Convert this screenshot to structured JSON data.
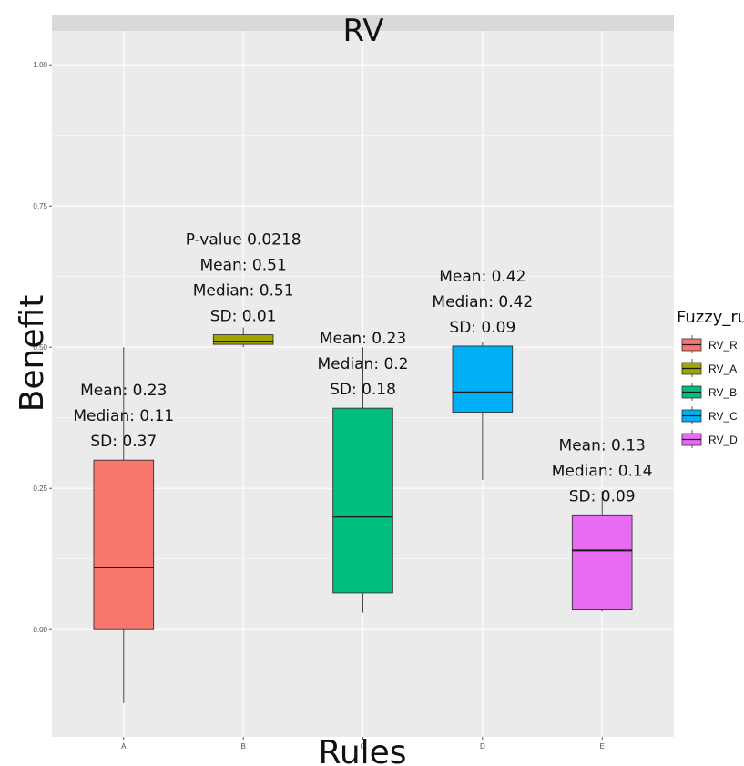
{
  "chart_data": {
    "type": "box",
    "title": "RV",
    "xlabel": "Rules",
    "ylabel": "Benefit",
    "ylim": [
      -0.19,
      1.06
    ],
    "y_ticks": [
      "0.00",
      "0.25",
      "0.50",
      "0.75",
      "1.00"
    ],
    "grid": true,
    "legend": {
      "title": "Fuzzy_rule",
      "placement": "right",
      "entries": [
        "RV_R",
        "RV_A",
        "RV_B",
        "RV_C",
        "RV_D"
      ]
    },
    "categories": [
      "A",
      "B",
      "C",
      "D",
      "E"
    ],
    "boxes": [
      {
        "category": "A",
        "series": "RV_R",
        "color": "#F8766D",
        "whisker_low": -0.13,
        "q1": 0.0,
        "median": 0.11,
        "q3": 0.3,
        "whisker_high": 0.5
      },
      {
        "category": "B",
        "series": "RV_A",
        "color": "#A3A500",
        "whisker_low": 0.5,
        "q1": 0.505,
        "median": 0.51,
        "q3": 0.522,
        "whisker_high": 0.535
      },
      {
        "category": "C",
        "series": "RV_B",
        "color": "#00BF7D",
        "whisker_low": 0.03,
        "q1": 0.065,
        "median": 0.2,
        "q3": 0.392,
        "whisker_high": 0.5
      },
      {
        "category": "D",
        "series": "RV_C",
        "color": "#00B0F6",
        "whisker_low": 0.265,
        "q1": 0.385,
        "median": 0.42,
        "q3": 0.502,
        "whisker_high": 0.51
      },
      {
        "category": "E",
        "series": "RV_D",
        "color": "#E76BF3",
        "whisker_low": 0.032,
        "q1": 0.035,
        "median": 0.14,
        "q3": 0.203,
        "whisker_high": 0.245
      }
    ],
    "annotations": [
      {
        "category": "A",
        "lines": [
          "Mean: 0.23",
          "Median: 0.11",
          "SD: 0.37"
        ]
      },
      {
        "category": "B",
        "lines": [
          "P-value  0.0218",
          "Mean: 0.51",
          "Median: 0.51",
          "SD: 0.01"
        ]
      },
      {
        "category": "C",
        "lines": [
          "Mean: 0.23",
          "Median: 0.2",
          "SD: 0.18"
        ]
      },
      {
        "category": "D",
        "lines": [
          "Mean: 0.42",
          "Median: 0.42",
          "SD: 0.09"
        ]
      },
      {
        "category": "E",
        "lines": [
          "Mean: 0.13",
          "Median: 0.14",
          "SD: 0.09"
        ]
      }
    ],
    "colors": {
      "panel": "#EBEBEB",
      "grid": "#FFFFFF",
      "strip": "#D9D9D9",
      "outline": "#333333"
    }
  }
}
